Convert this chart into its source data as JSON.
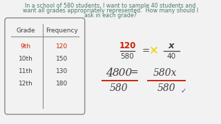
{
  "bg_color": "#f2f2f2",
  "text_color": "#404040",
  "teal_color": "#4a7a6a",
  "red_color": "#cc2200",
  "yellow_color": "#f0d000",
  "blue_color": "#3333cc",
  "title_line1": "In a school of 580 students, I want to sample 40 students and",
  "title_line2": "want all grades appropriately represented.  How many should I",
  "title_line3": "ask in each grade?",
  "grade_col": [
    "9th",
    "10th",
    "11th",
    "12th"
  ],
  "freq_col": [
    "120",
    "150",
    "130",
    "180"
  ],
  "frac1_num": "120",
  "frac1_den": "580",
  "frac2_num": "x",
  "frac2_den": "40",
  "eq2_lhs": "4800 =",
  "eq2_rhs_num": "580x",
  "eq2_lhs_den": "580",
  "eq2_rhs_den": "580",
  "font_title": 5.8,
  "font_table_hdr": 6.5,
  "font_table_row": 6.5,
  "font_eq1": 7.5,
  "font_eq2": 10.0
}
